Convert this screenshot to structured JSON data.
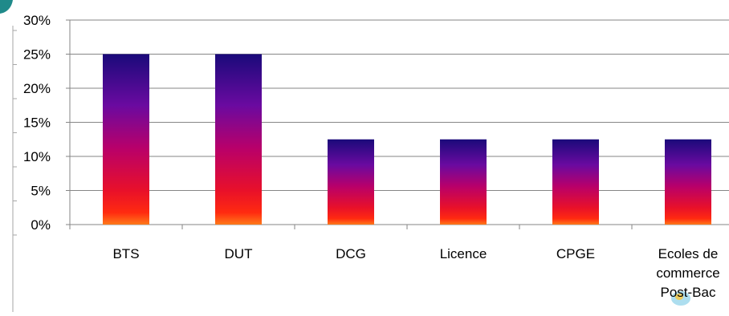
{
  "chart_data": {
    "type": "bar",
    "categories": [
      "BTS",
      "DUT",
      "DCG",
      "Licence",
      "CPGE",
      "Ecoles de commerce Post-Bac"
    ],
    "category_lines": [
      [
        "BTS"
      ],
      [
        "DUT"
      ],
      [
        "DCG"
      ],
      [
        "Licence"
      ],
      [
        "CPGE"
      ],
      [
        "Ecoles de",
        "commerce",
        "Post-Bac"
      ]
    ],
    "values": [
      25,
      25,
      12.5,
      12.5,
      12.5,
      12.5
    ],
    "ylim": [
      0,
      30
    ],
    "yticks": [
      0,
      5,
      10,
      15,
      20,
      25,
      30
    ],
    "ytick_labels": [
      "0%",
      "5%",
      "10%",
      "15%",
      "20%",
      "25%",
      "30%"
    ],
    "grid": true,
    "legend": "none",
    "title": "",
    "xlabel": "",
    "ylabel": "",
    "bar_gradient": [
      "#1a0a7a",
      "#6a0aa0",
      "#b8006a",
      "#e8102a",
      "#ff2a10",
      "#ff7a1a"
    ],
    "gridline_color": "#868686",
    "axis_color": "#868686"
  }
}
